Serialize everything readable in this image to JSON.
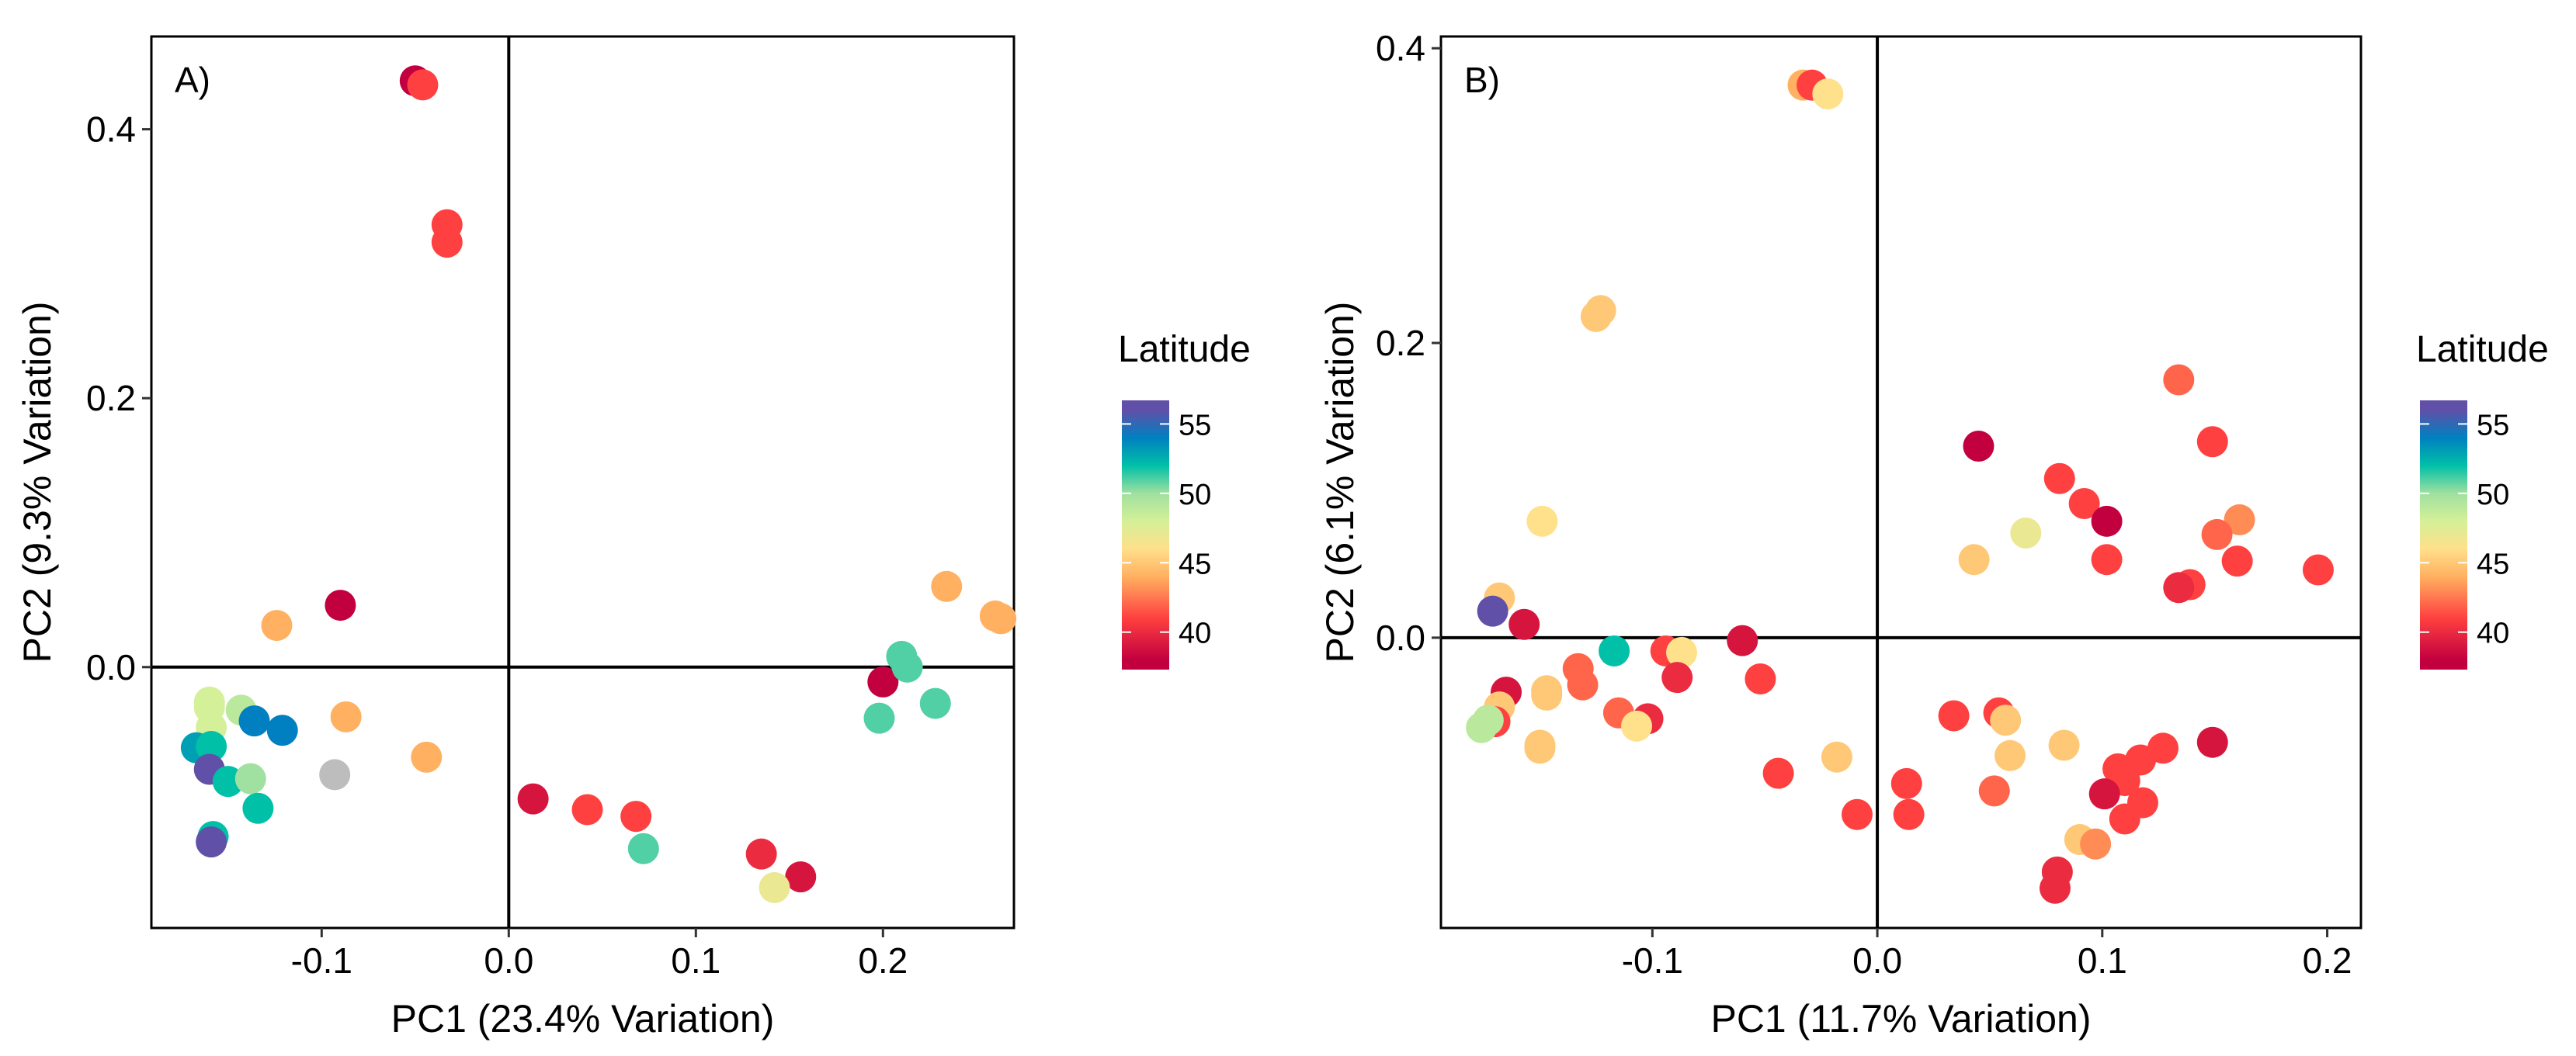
{
  "colorbar": {
    "title": "Latitude",
    "limits": [
      37.3,
      56.7
    ],
    "ticks": [
      40,
      45,
      50,
      55
    ],
    "stops": [
      [
        38,
        "#c2003f"
      ],
      [
        41,
        "#ff4040"
      ],
      [
        44,
        "#ffb060"
      ],
      [
        46,
        "#ffe08b"
      ],
      [
        48,
        "#d4f098"
      ],
      [
        50,
        "#a0e0a0"
      ],
      [
        52,
        "#00c0a8"
      ],
      [
        54,
        "#0080c0"
      ],
      [
        56,
        "#6050a8"
      ]
    ],
    "na_color": "#bdbdbd"
  },
  "chart_data": [
    {
      "type": "scatter",
      "panel_label": "A)",
      "xlabel": "PC1 (23.4% Variation)",
      "ylabel": "PC2 (9.3% Variation)",
      "xlim": [
        -0.191,
        0.27
      ],
      "ylim": [
        -0.194,
        0.469
      ],
      "xticks": [
        -0.1,
        0.0,
        0.1,
        0.2
      ],
      "xtick_labels": [
        "-0.1",
        "0.0",
        "0.1",
        "0.2"
      ],
      "yticks": [
        0.0,
        0.2,
        0.4
      ],
      "ytick_labels": [
        "0.0",
        "0.2",
        "0.4"
      ],
      "reference_lines": {
        "x": 0,
        "y": 0
      },
      "points": [
        {
          "x": -0.05,
          "y": 0.436,
          "lat": 38
        },
        {
          "x": -0.046,
          "y": 0.433,
          "lat": 41
        },
        {
          "x": -0.033,
          "y": 0.329,
          "lat": 41
        },
        {
          "x": -0.033,
          "y": 0.316,
          "lat": 41
        },
        {
          "x": -0.09,
          "y": 0.046,
          "lat": 38
        },
        {
          "x": -0.124,
          "y": 0.031,
          "lat": 44
        },
        {
          "x": -0.087,
          "y": -0.037,
          "lat": 44
        },
        {
          "x": -0.044,
          "y": -0.067,
          "lat": 44
        },
        {
          "x": -0.093,
          "y": -0.08,
          "lat": null
        },
        {
          "x": -0.16,
          "y": -0.026,
          "lat": 48
        },
        {
          "x": -0.16,
          "y": -0.03,
          "lat": 48
        },
        {
          "x": -0.159,
          "y": -0.045,
          "lat": 48
        },
        {
          "x": -0.143,
          "y": -0.032,
          "lat": 49
        },
        {
          "x": -0.136,
          "y": -0.04,
          "lat": 54
        },
        {
          "x": -0.121,
          "y": -0.047,
          "lat": 54
        },
        {
          "x": -0.167,
          "y": -0.06,
          "lat": 53
        },
        {
          "x": -0.159,
          "y": -0.059,
          "lat": 52
        },
        {
          "x": -0.16,
          "y": -0.076,
          "lat": 56
        },
        {
          "x": -0.15,
          "y": -0.085,
          "lat": 52
        },
        {
          "x": -0.138,
          "y": -0.083,
          "lat": 50
        },
        {
          "x": -0.134,
          "y": -0.105,
          "lat": 52
        },
        {
          "x": -0.158,
          "y": -0.126,
          "lat": 52
        },
        {
          "x": -0.159,
          "y": -0.13,
          "lat": 56
        },
        {
          "x": 0.013,
          "y": -0.098,
          "lat": 39
        },
        {
          "x": 0.042,
          "y": -0.106,
          "lat": 41
        },
        {
          "x": 0.068,
          "y": -0.111,
          "lat": 41
        },
        {
          "x": 0.072,
          "y": -0.135,
          "lat": 51
        },
        {
          "x": 0.135,
          "y": -0.139,
          "lat": 40
        },
        {
          "x": 0.156,
          "y": -0.156,
          "lat": 39
        },
        {
          "x": 0.142,
          "y": -0.164,
          "lat": 47
        },
        {
          "x": 0.2,
          "y": -0.011,
          "lat": 38
        },
        {
          "x": 0.198,
          "y": -0.038,
          "lat": 51
        },
        {
          "x": 0.21,
          "y": 0.008,
          "lat": 51
        },
        {
          "x": 0.213,
          "y": 0.0,
          "lat": 51
        },
        {
          "x": 0.228,
          "y": -0.027,
          "lat": 51
        },
        {
          "x": 0.234,
          "y": 0.06,
          "lat": 44
        },
        {
          "x": 0.26,
          "y": 0.038,
          "lat": 44
        },
        {
          "x": 0.263,
          "y": 0.036,
          "lat": 44
        }
      ]
    },
    {
      "type": "scatter",
      "panel_label": "B)",
      "xlabel": "PC1 (11.7% Variation)",
      "ylabel": "PC2 (6.1% Variation)",
      "xlim": [
        -0.194,
        0.215
      ],
      "ylim": [
        -0.197,
        0.408
      ],
      "xticks": [
        -0.1,
        0.0,
        0.1,
        0.2
      ],
      "xtick_labels": [
        "-0.1",
        "0.0",
        "0.1",
        "0.2"
      ],
      "yticks": [
        0.0,
        0.2,
        0.4
      ],
      "ytick_labels": [
        "0.0",
        "0.2",
        "0.4"
      ],
      "reference_lines": {
        "x": 0,
        "y": 0
      },
      "points": [
        {
          "x": -0.033,
          "y": 0.375,
          "lat": 44
        },
        {
          "x": -0.029,
          "y": 0.375,
          "lat": 41
        },
        {
          "x": -0.022,
          "y": 0.369,
          "lat": 46
        },
        {
          "x": -0.123,
          "y": 0.222,
          "lat": 45
        },
        {
          "x": -0.125,
          "y": 0.218,
          "lat": 45
        },
        {
          "x": -0.149,
          "y": 0.079,
          "lat": 46
        },
        {
          "x": -0.168,
          "y": 0.027,
          "lat": 45
        },
        {
          "x": -0.171,
          "y": 0.018,
          "lat": 56
        },
        {
          "x": -0.157,
          "y": 0.009,
          "lat": 39
        },
        {
          "x": -0.117,
          "y": -0.009,
          "lat": 52
        },
        {
          "x": -0.094,
          "y": -0.009,
          "lat": 41
        },
        {
          "x": -0.087,
          "y": -0.01,
          "lat": 46
        },
        {
          "x": -0.06,
          "y": -0.002,
          "lat": 39
        },
        {
          "x": -0.089,
          "y": -0.027,
          "lat": 40
        },
        {
          "x": -0.052,
          "y": -0.028,
          "lat": 41
        },
        {
          "x": -0.133,
          "y": -0.021,
          "lat": 42
        },
        {
          "x": -0.131,
          "y": -0.032,
          "lat": 42
        },
        {
          "x": -0.147,
          "y": -0.036,
          "lat": 45
        },
        {
          "x": -0.147,
          "y": -0.039,
          "lat": 45
        },
        {
          "x": -0.165,
          "y": -0.037,
          "lat": 39
        },
        {
          "x": -0.168,
          "y": -0.047,
          "lat": 45
        },
        {
          "x": -0.17,
          "y": -0.057,
          "lat": 41
        },
        {
          "x": -0.173,
          "y": -0.056,
          "lat": 49
        },
        {
          "x": -0.176,
          "y": -0.061,
          "lat": 49
        },
        {
          "x": -0.115,
          "y": -0.051,
          "lat": 42
        },
        {
          "x": -0.102,
          "y": -0.055,
          "lat": 40
        },
        {
          "x": -0.107,
          "y": -0.06,
          "lat": 46
        },
        {
          "x": -0.15,
          "y": -0.073,
          "lat": 45
        },
        {
          "x": -0.15,
          "y": -0.075,
          "lat": 45
        },
        {
          "x": -0.044,
          "y": -0.092,
          "lat": 41
        },
        {
          "x": -0.018,
          "y": -0.081,
          "lat": 45
        },
        {
          "x": -0.009,
          "y": -0.12,
          "lat": 41
        },
        {
          "x": 0.013,
          "y": -0.099,
          "lat": 41
        },
        {
          "x": 0.014,
          "y": -0.12,
          "lat": 41
        },
        {
          "x": 0.034,
          "y": -0.053,
          "lat": 41
        },
        {
          "x": 0.054,
          "y": -0.051,
          "lat": 41
        },
        {
          "x": 0.057,
          "y": -0.056,
          "lat": 45
        },
        {
          "x": 0.059,
          "y": -0.08,
          "lat": 45
        },
        {
          "x": 0.052,
          "y": -0.104,
          "lat": 42
        },
        {
          "x": 0.083,
          "y": -0.073,
          "lat": 45
        },
        {
          "x": 0.09,
          "y": -0.137,
          "lat": 45
        },
        {
          "x": 0.097,
          "y": -0.14,
          "lat": 43
        },
        {
          "x": 0.08,
          "y": -0.159,
          "lat": 40
        },
        {
          "x": 0.079,
          "y": -0.17,
          "lat": 40
        },
        {
          "x": 0.107,
          "y": -0.089,
          "lat": 41
        },
        {
          "x": 0.117,
          "y": -0.083,
          "lat": 41
        },
        {
          "x": 0.127,
          "y": -0.075,
          "lat": 41
        },
        {
          "x": 0.11,
          "y": -0.097,
          "lat": 41
        },
        {
          "x": 0.101,
          "y": -0.106,
          "lat": 39
        },
        {
          "x": 0.118,
          "y": -0.112,
          "lat": 41
        },
        {
          "x": 0.11,
          "y": -0.123,
          "lat": 41
        },
        {
          "x": 0.149,
          "y": -0.071,
          "lat": 39
        },
        {
          "x": 0.045,
          "y": 0.13,
          "lat": 38
        },
        {
          "x": 0.081,
          "y": 0.108,
          "lat": 41
        },
        {
          "x": 0.092,
          "y": 0.091,
          "lat": 41
        },
        {
          "x": 0.102,
          "y": 0.079,
          "lat": 38
        },
        {
          "x": 0.066,
          "y": 0.071,
          "lat": 47
        },
        {
          "x": 0.043,
          "y": 0.053,
          "lat": 45
        },
        {
          "x": 0.102,
          "y": 0.053,
          "lat": 41
        },
        {
          "x": 0.134,
          "y": 0.175,
          "lat": 42
        },
        {
          "x": 0.149,
          "y": 0.133,
          "lat": 41
        },
        {
          "x": 0.161,
          "y": 0.08,
          "lat": 43
        },
        {
          "x": 0.151,
          "y": 0.07,
          "lat": 42
        },
        {
          "x": 0.16,
          "y": 0.052,
          "lat": 41
        },
        {
          "x": 0.196,
          "y": 0.046,
          "lat": 41
        },
        {
          "x": 0.139,
          "y": 0.036,
          "lat": 41
        },
        {
          "x": 0.134,
          "y": 0.034,
          "lat": 40
        }
      ]
    }
  ]
}
